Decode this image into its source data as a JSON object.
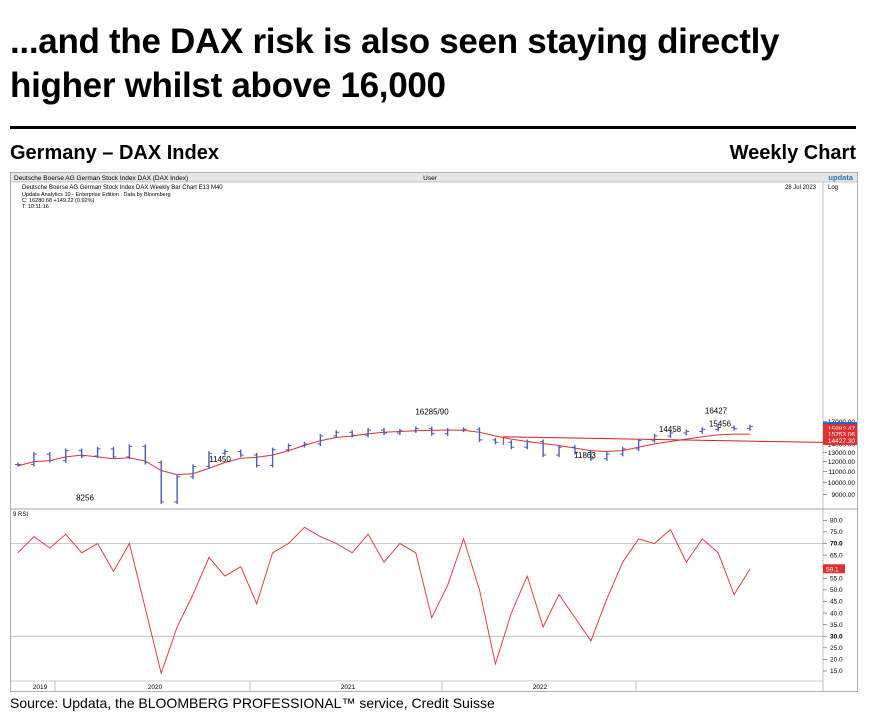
{
  "title": "...and the DAX risk is also seen staying directly higher whilst above 16,000",
  "subtitle_left": "Germany – DAX Index",
  "subtitle_right": "Weekly Chart",
  "source": "Source: Updata, the BLOOMBERG PROFESSIONAL™ service, Credit Suisse",
  "chart_header": {
    "top_left": "Deutsche Boerse AG German Stock Index DAX (DAX Index)",
    "top_center": "User",
    "logo": "updata",
    "line2": "Deutsche Boerse AG German Stock Index DAX Weekly Bar Chart   E13    M40",
    "line3": "Updata Analytics 10 - Enterprise Edition : Data by Bloomberg",
    "line4": "C: 16280.68  +149.22 (0.92%)",
    "line5": "T: 10:11:16",
    "date": "28 Jul 2023",
    "scale": "Log",
    "rsi_label": "9 RSI"
  },
  "colors": {
    "bars": "#4a5fb0",
    "ma": "#e03030",
    "rsi": "#e03030",
    "trend": "#d02020",
    "grid": "#999999"
  },
  "chart_data": [
    {
      "type": "bar",
      "subtype": "ohlc",
      "scale": "log",
      "ylim": [
        8000,
        17500
      ],
      "y_ticks": [
        9000,
        10000,
        11000,
        12000,
        13000,
        14000,
        15000,
        16000,
        17000
      ],
      "x_labels": [
        "2019",
        "2020",
        "2021",
        "2022"
      ],
      "series": [
        {
          "values": [
            11700,
            12800,
            12100,
            13200,
            12600,
            13400,
            12500,
            13700,
            11900,
            8441,
            10500,
            11500,
            12900,
            13100,
            12700,
            11600,
            13300,
            13800,
            14000,
            15000,
            15500,
            15100,
            15800,
            15400,
            15700,
            16000,
            15300,
            15800,
            15900,
            14500,
            14200,
            13600,
            14300,
            12700,
            13600,
            13000,
            12300,
            12800,
            13400,
            14400,
            15000,
            15400,
            15600,
            15900,
            16150,
            16000,
            16280
          ]
        },
        {
          "values": [
            11550,
            12000,
            12100,
            12500,
            12700,
            12500,
            12300,
            12400,
            12050,
            11100,
            10700,
            10800,
            11300,
            11900,
            12350,
            12450,
            12700,
            13200,
            13800,
            14400,
            14800,
            15000,
            15300,
            15500,
            15600,
            15700,
            15750,
            15800,
            15750,
            15500,
            15000,
            14600,
            14300,
            14050,
            13800,
            13500,
            13200,
            13100,
            13200,
            13600,
            14000,
            14300,
            14600,
            14900,
            15150,
            15250,
            15253
          ]
        }
      ],
      "annotations": [
        "8256",
        "11450",
        "16285/90",
        "11863",
        "14458",
        "16427",
        "15456"
      ],
      "price_tags": [
        "16280.68",
        "15982.47",
        "15253.06",
        "14427.30"
      ]
    },
    {
      "type": "line",
      "ylim": [
        10,
        80
      ],
      "y_ticks": [
        "15.0",
        "20.0",
        "25.0",
        "30.0",
        "35.0",
        "40.0",
        "45.0",
        "50.0",
        "55.0",
        "60.0",
        "65.0",
        "70.0",
        "75.0",
        "80.0"
      ],
      "reference_lines": [
        30,
        70
      ],
      "series": [
        {
          "name": "9 RSI",
          "values": [
            66,
            73,
            68,
            74,
            66,
            70,
            58,
            70,
            42,
            14,
            34,
            48,
            64,
            56,
            60,
            44,
            66,
            70,
            77,
            73,
            70,
            66,
            74,
            62,
            70,
            66,
            38,
            52,
            72,
            50,
            18,
            40,
            56,
            34,
            48,
            38,
            28,
            46,
            62,
            72,
            70,
            76,
            62,
            72,
            66,
            48,
            59
          ]
        }
      ],
      "current_value_tag": "59.1"
    }
  ]
}
